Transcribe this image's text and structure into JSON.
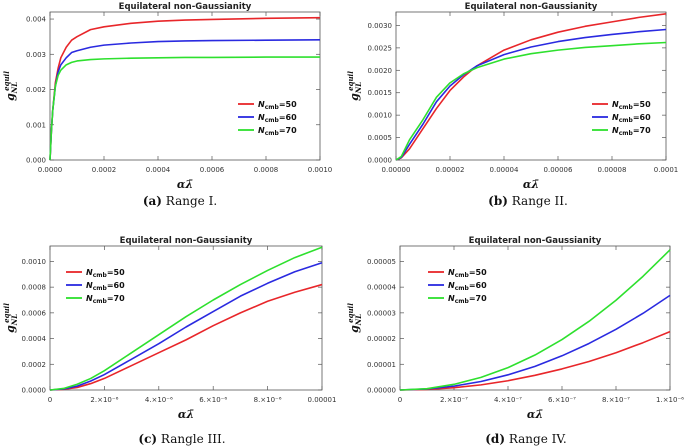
{
  "chart_data": [
    {
      "type": "line",
      "title": "Equilateral non-Gaussianity",
      "xlabel": "αλ̄",
      "ylabel_main": "g",
      "ylabel_sub": "NL",
      "ylabel_sup": "equil",
      "caption_tag": "(a)",
      "caption_text": "Range I.",
      "xlim": [
        0,
        0.001
      ],
      "ylim": [
        0,
        0.0042
      ],
      "xticks": [
        0,
        0.0002,
        0.0004,
        0.0006,
        0.0008,
        0.001
      ],
      "xtick_labels": [
        "0.0000",
        "0.0002",
        "0.0004",
        "0.0006",
        "0.0008",
        "0.0010"
      ],
      "yticks": [
        0,
        0.001,
        0.002,
        0.003,
        0.004
      ],
      "ytick_labels": [
        "0.000",
        "0.001",
        "0.002",
        "0.003",
        "0.004"
      ],
      "legend_position": "center-right",
      "x": [
        0,
        5e-06,
        1e-05,
        2e-05,
        3e-05,
        4e-05,
        6e-05,
        8e-05,
        0.0001,
        0.00015,
        0.0002,
        0.0003,
        0.0004,
        0.0005,
        0.0006,
        0.0008,
        0.001
      ],
      "series": [
        {
          "name_main": "N",
          "name_sub": "cmb",
          "name_rest": "=50",
          "color": "#e8262a",
          "values": [
            0,
            0.0008,
            0.0014,
            0.0022,
            0.0026,
            0.0029,
            0.0032,
            0.0034,
            0.0035,
            0.0037,
            0.00378,
            0.00388,
            0.00394,
            0.00397,
            0.00399,
            0.00402,
            0.00404
          ]
        },
        {
          "name_main": "N",
          "name_sub": "cmb",
          "name_rest": "=60",
          "color": "#2a2ae0",
          "values": [
            0,
            0.0008,
            0.0014,
            0.0021,
            0.0025,
            0.0027,
            0.0029,
            0.00305,
            0.0031,
            0.0032,
            0.00326,
            0.00332,
            0.00336,
            0.00338,
            0.00339,
            0.0034,
            0.00341
          ]
        },
        {
          "name_main": "N",
          "name_sub": "cmb",
          "name_rest": "=70",
          "color": "#2ee02e",
          "values": [
            0,
            0.0008,
            0.0014,
            0.0021,
            0.0024,
            0.00255,
            0.0027,
            0.00277,
            0.00281,
            0.00285,
            0.00287,
            0.00289,
            0.0029,
            0.00291,
            0.00291,
            0.00292,
            0.00292
          ]
        }
      ]
    },
    {
      "type": "line",
      "title": "Equilateral non-Gaussianity",
      "xlabel": "αλ̄",
      "ylabel_main": "g",
      "ylabel_sub": "NL",
      "ylabel_sup": "equil",
      "caption_tag": "(b)",
      "caption_text": "Range II.",
      "xlim": [
        0,
        0.0001
      ],
      "ylim": [
        0,
        0.0033
      ],
      "xticks": [
        0,
        2e-05,
        4e-05,
        6e-05,
        8e-05,
        0.0001
      ],
      "xtick_labels": [
        "0.00000",
        "0.00002",
        "0.00004",
        "0.00006",
        "0.00008",
        "0.0001"
      ],
      "yticks": [
        0,
        0.0005,
        0.001,
        0.0015,
        0.002,
        0.0025,
        0.003
      ],
      "ytick_labels": [
        "0.0000",
        "0.0005",
        "0.0010",
        "0.0015",
        "0.0020",
        "0.0025",
        "0.0030"
      ],
      "legend_position": "center-right",
      "x": [
        0,
        2e-06,
        5e-06,
        1e-05,
        1.5e-05,
        2e-05,
        2.5e-05,
        3e-05,
        4e-05,
        5e-05,
        6e-05,
        7e-05,
        8e-05,
        9e-05,
        0.0001
      ],
      "series": [
        {
          "name_main": "N",
          "name_sub": "cmb",
          "name_rest": "=50",
          "color": "#e8262a",
          "values": [
            0,
            5e-05,
            0.00025,
            0.0007,
            0.00115,
            0.00155,
            0.00185,
            0.0021,
            0.00245,
            0.00268,
            0.00285,
            0.00298,
            0.00308,
            0.00318,
            0.00326
          ]
        },
        {
          "name_main": "N",
          "name_sub": "cmb",
          "name_rest": "=60",
          "color": "#2a2ae0",
          "values": [
            0,
            6e-05,
            0.00035,
            0.0008,
            0.0013,
            0.00165,
            0.0019,
            0.0021,
            0.00235,
            0.00252,
            0.00264,
            0.00273,
            0.0028,
            0.00286,
            0.00291
          ]
        },
        {
          "name_main": "N",
          "name_sub": "cmb",
          "name_rest": "=70",
          "color": "#2ee02e",
          "values": [
            0,
            8e-05,
            0.00045,
            0.0009,
            0.0014,
            0.00172,
            0.00192,
            0.00206,
            0.00225,
            0.00237,
            0.00245,
            0.00251,
            0.00255,
            0.00259,
            0.00262
          ]
        }
      ]
    },
    {
      "type": "line",
      "title": "Equilateral non-Gaussianity",
      "xlabel": "αλ̄",
      "ylabel_main": "g",
      "ylabel_sub": "NL",
      "ylabel_sup": "equil",
      "caption_tag": "(c)",
      "caption_text": "Rangle III.",
      "xlim": [
        0,
        1e-05
      ],
      "ylim": [
        0,
        0.00112
      ],
      "xticks": [
        0,
        2e-06,
        4e-06,
        6e-06,
        8e-06,
        1e-05
      ],
      "xtick_labels": [
        "0",
        "2.×10⁻⁶",
        "4.×10⁻⁶",
        "6.×10⁻⁶",
        "8.×10⁻⁶",
        "0.00001"
      ],
      "yticks": [
        0,
        0.0002,
        0.0004,
        0.0006,
        0.0008,
        0.001
      ],
      "ytick_labels": [
        "0.0000",
        "0.0002",
        "0.0004",
        "0.0006",
        "0.0008",
        "0.0010"
      ],
      "legend_position": "top-left",
      "x": [
        0,
        5e-07,
        1e-06,
        1.5e-06,
        2e-06,
        3e-06,
        4e-06,
        5e-06,
        6e-06,
        7e-06,
        8e-06,
        9e-06,
        1e-05
      ],
      "series": [
        {
          "name_main": "N",
          "name_sub": "cmb",
          "name_rest": "=50",
          "color": "#e8262a",
          "values": [
            0,
            5e-06,
            2e-05,
            5e-05,
            9e-05,
            0.00019,
            0.00029,
            0.00039,
            0.0005,
            0.0006,
            0.00069,
            0.00076,
            0.00082
          ]
        },
        {
          "name_main": "N",
          "name_sub": "cmb",
          "name_rest": "=60",
          "color": "#2a2ae0",
          "values": [
            0,
            8e-06,
            3e-05,
            7e-05,
            0.00012,
            0.00024,
            0.00036,
            0.00049,
            0.00061,
            0.00073,
            0.00083,
            0.00092,
            0.00099
          ]
        },
        {
          "name_main": "N",
          "name_sub": "cmb",
          "name_rest": "=70",
          "color": "#2ee02e",
          "values": [
            0,
            1.2e-05,
            4.5e-05,
            9e-05,
            0.00015,
            0.00029,
            0.00043,
            0.00057,
            0.0007,
            0.00082,
            0.00093,
            0.00103,
            0.00111
          ]
        }
      ]
    },
    {
      "type": "line",
      "title": "Equilateral non-Gaussianity",
      "xlabel": "αλ̄",
      "ylabel_main": "g",
      "ylabel_sub": "NL",
      "ylabel_sup": "equil",
      "caption_tag": "(d)",
      "caption_text": "Range IV.",
      "xlim": [
        0,
        1e-06
      ],
      "ylim": [
        0,
        5.6e-05
      ],
      "xticks": [
        0,
        2e-07,
        4e-07,
        6e-07,
        8e-07,
        1e-06
      ],
      "xtick_labels": [
        "0",
        "2.×10⁻⁷",
        "4.×10⁻⁷",
        "6.×10⁻⁷",
        "8.×10⁻⁷",
        "1.×10⁻⁶"
      ],
      "yticks": [
        0,
        1e-05,
        2e-05,
        3e-05,
        4e-05,
        5e-05
      ],
      "ytick_labels": [
        "0.00000",
        "0.00001",
        "0.00002",
        "0.00003",
        "0.00004",
        "0.00005"
      ],
      "legend_position": "top-left",
      "x": [
        0,
        1e-07,
        2e-07,
        3e-07,
        4e-07,
        5e-07,
        6e-07,
        7e-07,
        8e-07,
        9e-07,
        1e-06
      ],
      "series": [
        {
          "name_main": "N",
          "name_sub": "cmb",
          "name_rest": "=50",
          "color": "#e8262a",
          "values": [
            0,
            2e-07,
            9e-07,
            2e-06,
            3.6e-06,
            5.7e-06,
            8.2e-06,
            1.11e-05,
            1.45e-05,
            1.84e-05,
            2.27e-05
          ]
        },
        {
          "name_main": "N",
          "name_sub": "cmb",
          "name_rest": "=60",
          "color": "#2a2ae0",
          "values": [
            0,
            4e-07,
            1.5e-06,
            3.3e-06,
            5.9e-06,
            9.2e-06,
            1.33e-05,
            1.81e-05,
            2.36e-05,
            2.98e-05,
            3.68e-05
          ]
        },
        {
          "name_main": "N",
          "name_sub": "cmb",
          "name_rest": "=70",
          "color": "#2ee02e",
          "values": [
            0,
            5e-07,
            2.2e-06,
            4.9e-06,
            8.7e-06,
            1.36e-05,
            1.96e-05,
            2.67e-05,
            3.49e-05,
            4.42e-05,
            5.45e-05
          ]
        }
      ]
    }
  ]
}
